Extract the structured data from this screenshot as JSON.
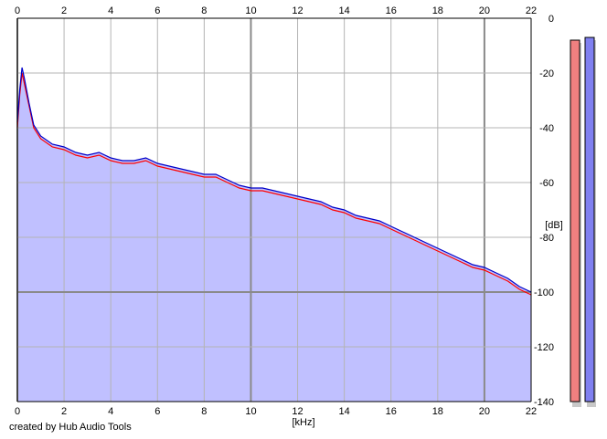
{
  "credit": "created by Hub Audio Tools",
  "chart_data": {
    "type": "area",
    "xlabel": "[kHz]",
    "ylabel": "[dB]",
    "xlim": [
      0,
      22
    ],
    "ylim": [
      -140,
      0
    ],
    "x_ticks": [
      0,
      2,
      4,
      6,
      8,
      10,
      12,
      14,
      16,
      18,
      20,
      22
    ],
    "y_ticks": [
      0,
      -20,
      -40,
      -60,
      -80,
      -100,
      -120,
      -140
    ],
    "y_tick_labels": [
      "0",
      "-20",
      "-40",
      "-60",
      "-80",
      "-100",
      "-120",
      "-140"
    ],
    "grid": true,
    "colors": {
      "fill": "#c0c0ff",
      "left_channel": "#ff0000",
      "right_channel": "#0000c8",
      "grid": "#b4b4b4",
      "meter_left": "#f08080",
      "meter_right": "#8080f0"
    },
    "series": [
      {
        "x": [
          0,
          0.1,
          0.2,
          0.3,
          0.5,
          0.7,
          1.0,
          1.5,
          2.0,
          2.5,
          3.0,
          3.5,
          4.0,
          4.5,
          5.0,
          5.5,
          6.0,
          6.5,
          7.0,
          7.5,
          8.0,
          8.5,
          9.0,
          9.5,
          10.0,
          10.5,
          11.0,
          11.5,
          12.0,
          12.5,
          13.0,
          13.5,
          14.0,
          14.5,
          15.0,
          15.5,
          16.0,
          16.5,
          17.0,
          17.5,
          18.0,
          18.5,
          19.0,
          19.5,
          20.0,
          20.5,
          21.0,
          21.5,
          22.0
        ],
        "values": [
          -40,
          -28,
          -20,
          -24,
          -32,
          -40,
          -44,
          -47,
          -48,
          -50,
          -51,
          -50,
          -52,
          -53,
          -53,
          -52,
          -54,
          -55,
          -56,
          -57,
          -58,
          -58,
          -60,
          -62,
          -63,
          -63,
          -64,
          -65,
          -66,
          -67,
          -68,
          -70,
          -71,
          -73,
          -74,
          -75,
          -77,
          -79,
          -81,
          -83,
          -85,
          -87,
          -89,
          -91,
          -92,
          -94,
          -96,
          -99,
          -101
        ]
      },
      {
        "x": [
          0,
          0.1,
          0.2,
          0.3,
          0.5,
          0.7,
          1.0,
          1.5,
          2.0,
          2.5,
          3.0,
          3.5,
          4.0,
          4.5,
          5.0,
          5.5,
          6.0,
          6.5,
          7.0,
          7.5,
          8.0,
          8.5,
          9.0,
          9.5,
          10.0,
          10.5,
          11.0,
          11.5,
          12.0,
          12.5,
          13.0,
          13.5,
          14.0,
          14.5,
          15.0,
          15.5,
          16.0,
          16.5,
          17.0,
          17.5,
          18.0,
          18.5,
          19.0,
          19.5,
          20.0,
          20.5,
          21.0,
          21.5,
          22.0
        ],
        "values": [
          -38,
          -26,
          -18,
          -22,
          -31,
          -39,
          -43,
          -46,
          -47,
          -49,
          -50,
          -49,
          -51,
          -52,
          -52,
          -51,
          -53,
          -54,
          -55,
          -56,
          -57,
          -57,
          -59,
          -61,
          -62,
          -62,
          -63,
          -64,
          -65,
          -66,
          -67,
          -69,
          -70,
          -72,
          -73,
          -74,
          -76,
          -78,
          -80,
          -82,
          -84,
          -86,
          -88,
          -90,
          -91,
          -93,
          -95,
          -98,
          -100
        ]
      }
    ],
    "meters": [
      {
        "channel": "left",
        "peak_db": -8
      },
      {
        "channel": "right",
        "peak_db": -7
      }
    ]
  }
}
